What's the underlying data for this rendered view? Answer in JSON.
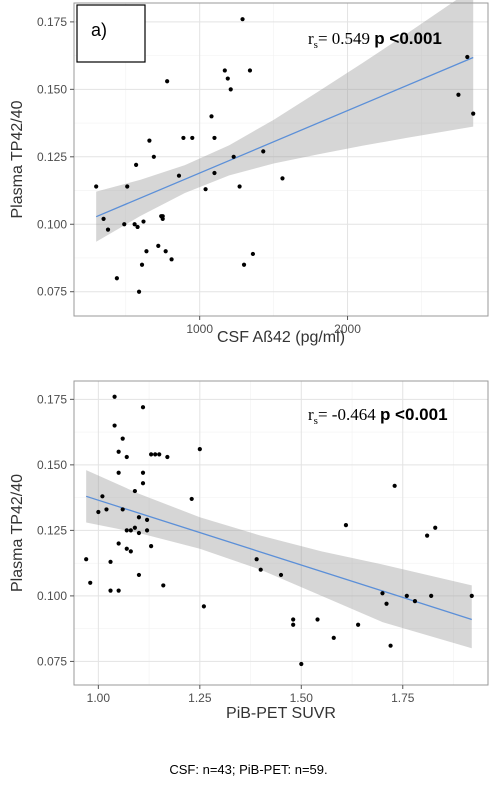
{
  "chart_data": [
    {
      "type": "scatter",
      "panel_tag": "a)",
      "xlabel": "CSF Aß42 (pg/ml)",
      "ylabel": "Plasma TP42/40",
      "xlim": [
        150,
        2950
      ],
      "ylim": [
        0.066,
        0.182
      ],
      "xticks": [
        1000,
        2000
      ],
      "yticks": [
        0.075,
        0.1,
        0.125,
        0.15,
        0.175
      ],
      "ytick_labels": [
        "0.075",
        "0.100",
        "0.125",
        "0.150",
        "0.175"
      ],
      "grid": true,
      "stat_label": {
        "r": "r",
        "sub": "s",
        "value": "= 0.549 ",
        "p": "p <0.001"
      },
      "fit": {
        "x": [
          300,
          2850
        ],
        "y": [
          0.1028,
          0.1618
        ]
      },
      "band": {
        "x": [
          300,
          600,
          900,
          1200,
          1500,
          1800,
          2100,
          2400,
          2850
        ],
        "lower": [
          0.0935,
          0.1031,
          0.1116,
          0.1181,
          0.1225,
          0.1259,
          0.1291,
          0.132,
          0.1362
        ],
        "upper": [
          0.1121,
          0.1165,
          0.1219,
          0.1293,
          0.1387,
          0.1491,
          0.1597,
          0.1706,
          0.1874
        ]
      },
      "points": {
        "x": [
          300,
          350,
          380,
          440,
          490,
          510,
          560,
          570,
          590,
          610,
          620,
          640,
          660,
          690,
          720,
          740,
          750,
          770,
          780,
          810,
          860,
          890,
          950,
          1040,
          1080,
          1100,
          1170,
          1190,
          1210,
          1230,
          1270,
          1290,
          1300,
          1340,
          1360,
          1430,
          1560,
          2750,
          2810,
          2850,
          1100,
          750,
          580
        ],
        "y": [
          0.114,
          0.102,
          0.098,
          0.08,
          0.1,
          0.114,
          0.1,
          0.122,
          0.075,
          0.085,
          0.101,
          0.09,
          0.131,
          0.125,
          0.092,
          0.103,
          0.103,
          0.09,
          0.153,
          0.087,
          0.118,
          0.132,
          0.132,
          0.113,
          0.14,
          0.119,
          0.157,
          0.154,
          0.15,
          0.125,
          0.114,
          0.176,
          0.085,
          0.157,
          0.089,
          0.127,
          0.117,
          0.148,
          0.162,
          0.141,
          0.132,
          0.102,
          0.099
        ]
      }
    },
    {
      "type": "scatter",
      "panel_tag": "",
      "xlabel": "PiB-PET SUVR",
      "ylabel": "Plasma TP42/40",
      "xlim": [
        0.94,
        1.96
      ],
      "ylim": [
        0.066,
        0.182
      ],
      "xticks": [
        1.0,
        1.25,
        1.5,
        1.75
      ],
      "xtick_labels": [
        "1.00",
        "1.25",
        "1.50",
        "1.75"
      ],
      "yticks": [
        0.075,
        0.1,
        0.125,
        0.15,
        0.175
      ],
      "ytick_labels": [
        "0.075",
        "0.100",
        "0.125",
        "0.150",
        "0.175"
      ],
      "grid": true,
      "stat_label": {
        "r": "r",
        "sub": "s",
        "value": "= -0.464 ",
        "p": "p <0.001"
      },
      "fit": {
        "x": [
          0.97,
          1.92
        ],
        "y": [
          0.138,
          0.091
        ]
      },
      "band": {
        "x": [
          0.97,
          1.1,
          1.25,
          1.4,
          1.55,
          1.7,
          1.92
        ],
        "lower": [
          0.128,
          0.124,
          0.118,
          0.11,
          0.1,
          0.09,
          0.08
        ],
        "upper": [
          0.148,
          0.139,
          0.13,
          0.123,
          0.117,
          0.112,
          0.104
        ]
      },
      "points": {
        "x": [
          0.97,
          0.98,
          1.0,
          1.01,
          1.02,
          1.03,
          1.03,
          1.04,
          1.04,
          1.05,
          1.05,
          1.05,
          1.06,
          1.06,
          1.07,
          1.07,
          1.07,
          1.08,
          1.08,
          1.09,
          1.09,
          1.1,
          1.1,
          1.1,
          1.11,
          1.11,
          1.11,
          1.12,
          1.12,
          1.13,
          1.13,
          1.14,
          1.15,
          1.16,
          1.17,
          1.23,
          1.25,
          1.26,
          1.39,
          1.4,
          1.45,
          1.48,
          1.48,
          1.5,
          1.54,
          1.58,
          1.61,
          1.64,
          1.7,
          1.71,
          1.72,
          1.73,
          1.76,
          1.78,
          1.81,
          1.82,
          1.83,
          1.92,
          1.05
        ],
        "y": [
          0.114,
          0.105,
          0.132,
          0.138,
          0.133,
          0.113,
          0.102,
          0.176,
          0.165,
          0.147,
          0.155,
          0.12,
          0.16,
          0.133,
          0.118,
          0.125,
          0.153,
          0.117,
          0.125,
          0.14,
          0.126,
          0.124,
          0.13,
          0.108,
          0.172,
          0.147,
          0.143,
          0.125,
          0.129,
          0.154,
          0.119,
          0.154,
          0.154,
          0.104,
          0.153,
          0.137,
          0.156,
          0.096,
          0.114,
          0.11,
          0.108,
          0.091,
          0.089,
          0.074,
          0.091,
          0.084,
          0.127,
          0.089,
          0.101,
          0.097,
          0.081,
          0.142,
          0.1,
          0.098,
          0.123,
          0.1,
          0.126,
          0.1,
          0.102
        ]
      }
    }
  ],
  "footnote": "CSF: n=43; PiB-PET: n=59."
}
